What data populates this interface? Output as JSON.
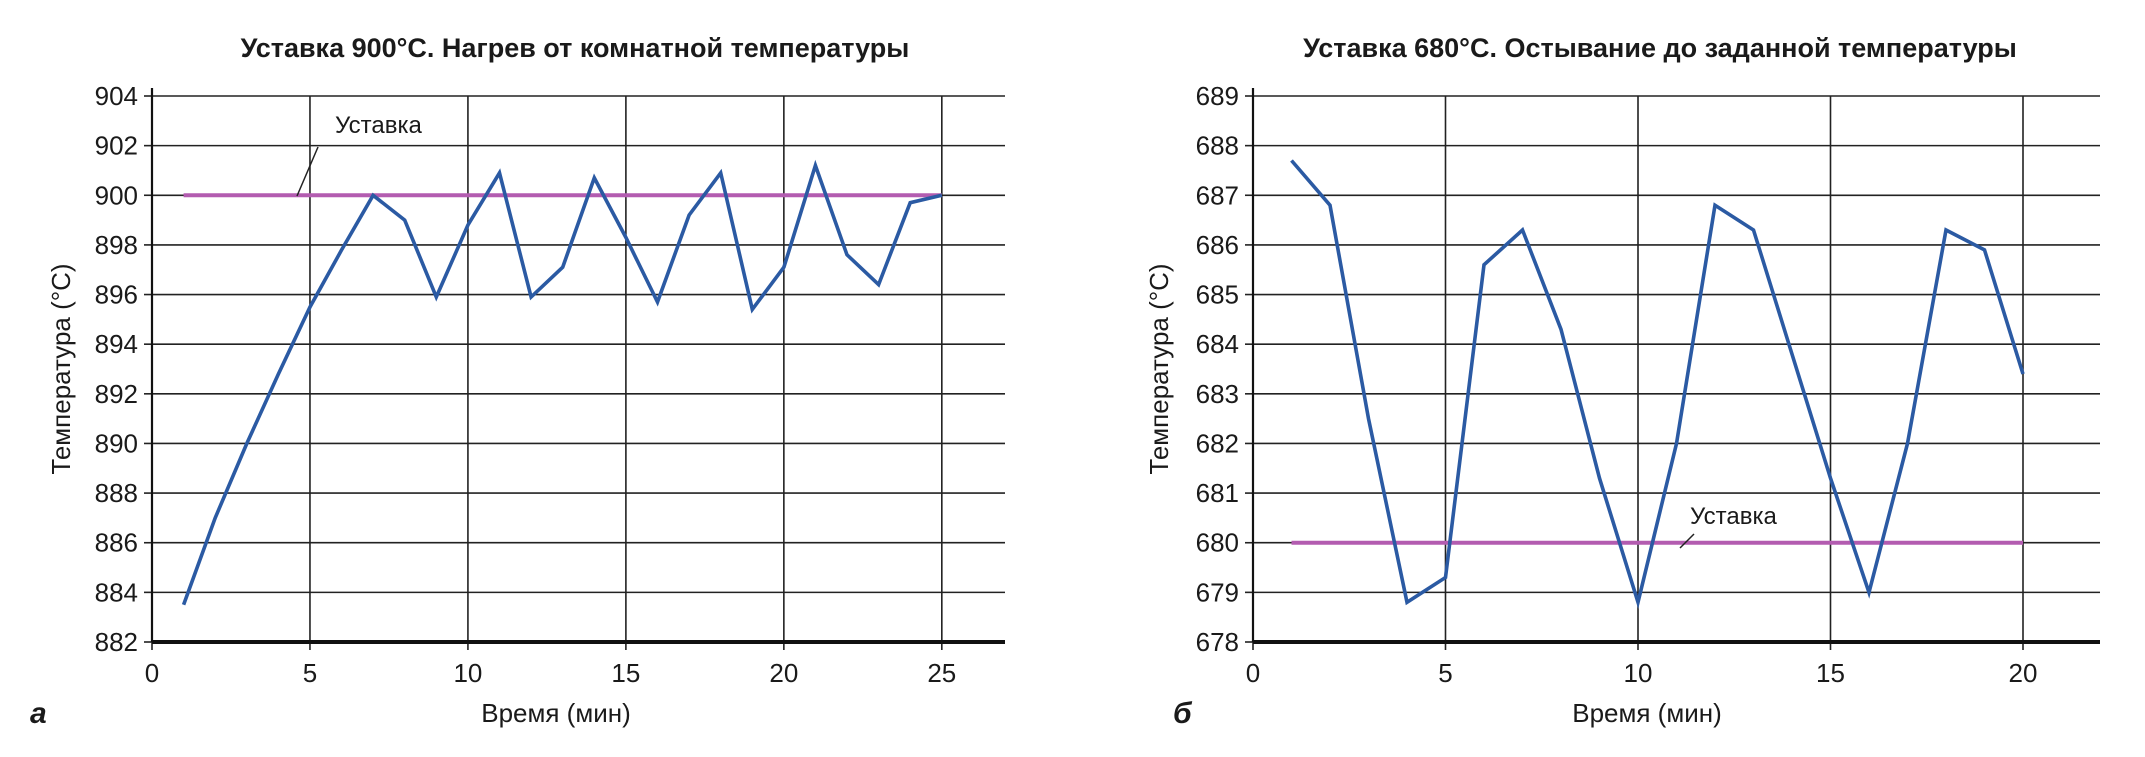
{
  "chart_data": [
    {
      "type": "line",
      "panel_label": "а",
      "title": "Уставка 900°С. Нагрев от комнатной температуры",
      "xlabel": "Время (мин)",
      "ylabel": "Температура (°С)",
      "xlim": [
        0,
        27
      ],
      "ylim": [
        882,
        904
      ],
      "x_ticks": [
        0,
        5,
        10,
        15,
        20,
        25
      ],
      "y_ticks": [
        882,
        884,
        886,
        888,
        890,
        892,
        894,
        896,
        898,
        900,
        902,
        904
      ],
      "grid": true,
      "series": [
        {
          "color": "#2b5aa3",
          "points": [
            [
              1,
              883.5
            ],
            [
              2,
              887
            ],
            [
              3,
              890
            ],
            [
              4,
              892.8
            ],
            [
              5,
              895.5
            ],
            [
              6,
              897.8
            ],
            [
              7,
              900
            ],
            [
              8,
              899
            ],
            [
              9,
              895.9
            ],
            [
              10,
              898.8
            ],
            [
              11,
              900.9
            ],
            [
              12,
              895.9
            ],
            [
              13,
              897.1
            ],
            [
              14,
              900.7
            ],
            [
              15,
              898.3
            ],
            [
              16,
              895.7
            ],
            [
              17,
              899.2
            ],
            [
              18,
              900.9
            ],
            [
              19,
              895.4
            ],
            [
              20,
              897.1
            ],
            [
              21,
              901.2
            ],
            [
              22,
              897.6
            ],
            [
              23,
              896.4
            ],
            [
              24,
              899.7
            ],
            [
              25,
              900
            ]
          ]
        },
        {
          "color": "#b35cb0",
          "points": [
            [
              1,
              900
            ],
            [
              25,
              900
            ]
          ]
        }
      ],
      "annotation": {
        "text": "Уставка",
        "x": 4.4,
        "y": 900
      }
    },
    {
      "type": "line",
      "panel_label": "б",
      "title": "Уставка 680°С. Остывание до заданной температуры",
      "xlabel": "Время (мин)",
      "ylabel": "Температура (°С)",
      "xlim": [
        0,
        22
      ],
      "ylim": [
        678,
        689
      ],
      "x_ticks": [
        0,
        5,
        10,
        15,
        20
      ],
      "y_ticks": [
        678,
        679,
        680,
        681,
        682,
        683,
        684,
        685,
        686,
        687,
        688,
        689
      ],
      "grid": true,
      "series": [
        {
          "color": "#2b5aa3",
          "points": [
            [
              1,
              687.7
            ],
            [
              2,
              686.8
            ],
            [
              3,
              682.5
            ],
            [
              4,
              678.8
            ],
            [
              5,
              679.3
            ],
            [
              6,
              685.6
            ],
            [
              7,
              686.3
            ],
            [
              8,
              684.3
            ],
            [
              9,
              681.3
            ],
            [
              10,
              678.8
            ],
            [
              11,
              682
            ],
            [
              12,
              686.8
            ],
            [
              13,
              686.3
            ],
            [
              14,
              683.8
            ],
            [
              15,
              681.3
            ],
            [
              16,
              679
            ],
            [
              17,
              682
            ],
            [
              18,
              686.3
            ],
            [
              19,
              685.9
            ],
            [
              20,
              683.4
            ]
          ]
        },
        {
          "color": "#b35cb0",
          "points": [
            [
              1,
              680
            ],
            [
              20,
              680
            ]
          ]
        }
      ],
      "annotation": {
        "text": "Уставка",
        "x": 11.1,
        "y": 680
      }
    }
  ]
}
